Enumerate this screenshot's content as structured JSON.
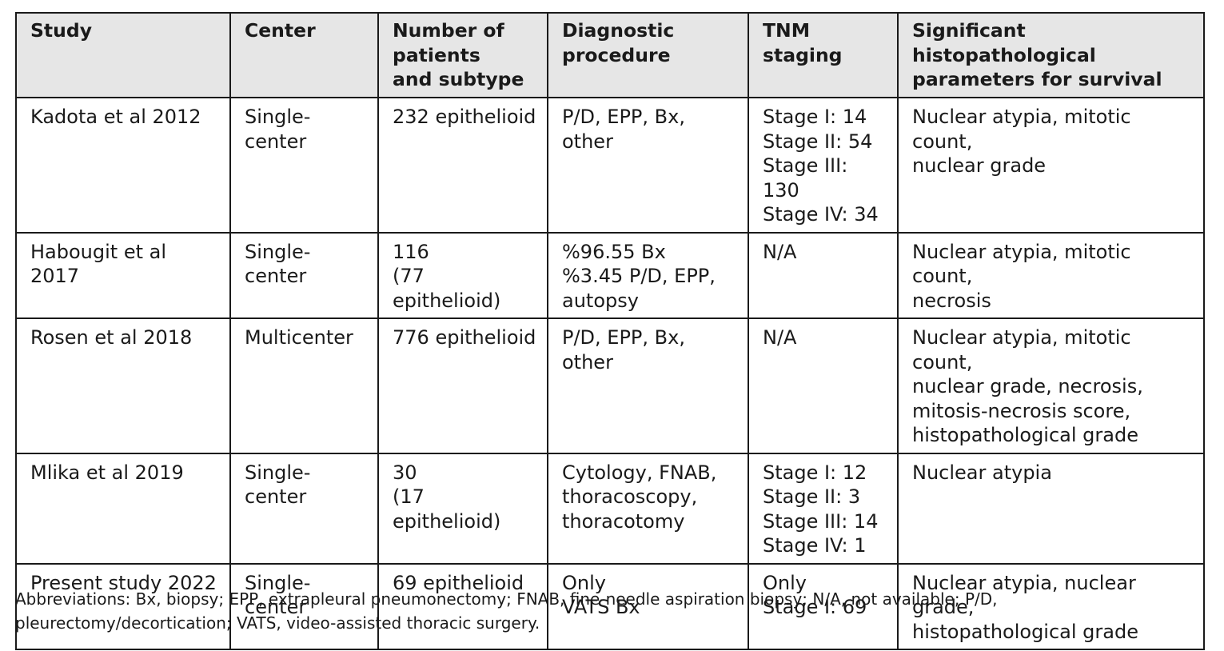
{
  "table": {
    "headers": [
      "Study",
      "Center",
      "Number of\npatients\nand subtype",
      "Diagnostic\nprocedure",
      "TNM staging",
      "Significant histopathological\nparameters for survival"
    ],
    "rows": [
      [
        "Kadota et al 2012",
        "Single-center",
        "232 epithelioid",
        "P/D, EPP, Bx, other",
        "Stage I: 14\nStage II: 54\nStage III: 130\nStage IV: 34",
        "Nuclear atypia, mitotic count,\nnuclear grade"
      ],
      [
        "Habougit et al 2017",
        "Single-center",
        "116\n(77 epithelioid)",
        "%96.55 Bx\n%3.45 P/D, EPP,\nautopsy",
        "N/A",
        "Nuclear atypia, mitotic count,\nnecrosis"
      ],
      [
        "Rosen et al 2018",
        "Multicenter",
        "776 epithelioid",
        "P/D, EPP, Bx, other",
        "N/A",
        "Nuclear atypia, mitotic count,\nnuclear grade, necrosis,\nmitosis-necrosis score,\nhistopathological grade"
      ],
      [
        "Mlika et al 2019",
        "Single-center",
        "30\n(17 epithelioid)",
        "Cytology, FNAB,\nthoracoscopy,\nthoracotomy",
        "Stage I: 12\nStage II: 3\nStage III: 14\nStage IV: 1",
        "Nuclear atypia"
      ],
      [
        "Present study 2022",
        "Single-center",
        "69 epithelioid",
        "Only\nVATS Bx",
        "Only\nStage I: 69",
        "Nuclear atypia, nuclear grade,\nhistopathological grade"
      ]
    ]
  },
  "footnote": "Abbreviations: Bx, biopsy; EPP, extrapleural pneumonectomy; FNAB, fine-needle aspiration biopsy; N/A, not available; P/D, pleurectomy/decortication; VATS, video-assisted thoracic surgery."
}
